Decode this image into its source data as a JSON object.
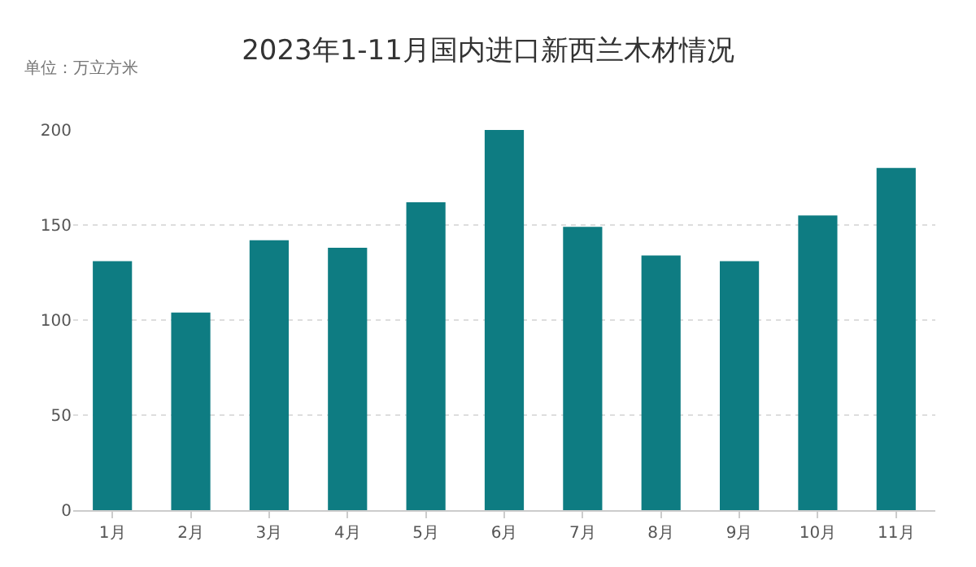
{
  "chart_data": {
    "type": "bar",
    "title": "2023年1-11月国内进口新西兰木材情况",
    "annotations": [
      "单位：万立方米"
    ],
    "categories": [
      "1月",
      "2月",
      "3月",
      "4月",
      "5月",
      "6月",
      "7月",
      "8月",
      "9月",
      "10月",
      "11月"
    ],
    "values": [
      131,
      104,
      142,
      138,
      162,
      200,
      149,
      134,
      131,
      155,
      180
    ],
    "color": "#0e7c82",
    "ylim": [
      0,
      200
    ],
    "yticks": [
      0,
      50,
      100,
      150,
      200
    ],
    "grid": "y",
    "legend": false
  }
}
